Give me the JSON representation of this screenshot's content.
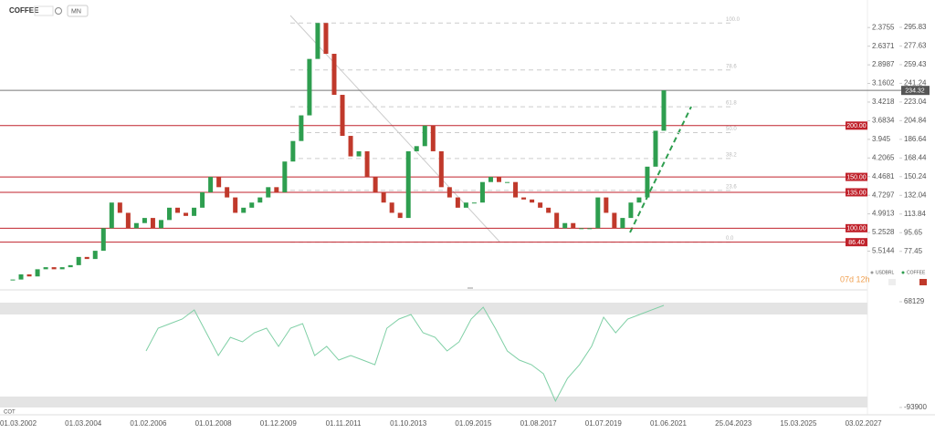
{
  "toolbar": {
    "symbol": "COFFEE",
    "timeframe": "MN"
  },
  "chart_data": [
    {
      "type": "candlestick",
      "x_labels": [
        "01.03.2002",
        "01.03.2004",
        "01.02.2006",
        "01.01.2008",
        "01.12.2009",
        "01.11.2011",
        "01.10.2013",
        "01.09.2015",
        "01.08.2017",
        "01.07.2019",
        "01.06.2021",
        "25.04.2023",
        "15.03.2025",
        "03.02.2027"
      ],
      "values": [
        50,
        55,
        53,
        60,
        62,
        60,
        62,
        64,
        72,
        70,
        78,
        100,
        125,
        115,
        100,
        105,
        110,
        100,
        108,
        120,
        115,
        112,
        120,
        135,
        150,
        140,
        130,
        115,
        120,
        125,
        130,
        140,
        135,
        165,
        185,
        210,
        265,
        300,
        270,
        230,
        190,
        170,
        175,
        150,
        135,
        125,
        115,
        110,
        175,
        180,
        200,
        175,
        140,
        130,
        120,
        125,
        125,
        145,
        150,
        145,
        145,
        130,
        128,
        125,
        120,
        115,
        100,
        105,
        100,
        100,
        100,
        130,
        115,
        100,
        110,
        125,
        130,
        160,
        195,
        234.32
      ],
      "up_color": "#2e9e4f",
      "down_color": "#c0392b",
      "ylim": [
        47,
        310
      ],
      "yticks": [
        295.83,
        277.63,
        259.43,
        241.24,
        223.04,
        204.84,
        186.64,
        168.44,
        150.24,
        132.04,
        113.84,
        95.65,
        77.45
      ],
      "y2lim": [
        5.956,
        2.168
      ],
      "y2ticks": [
        2.3755,
        2.6371,
        2.8987,
        3.1602,
        3.4218,
        3.6834,
        3.945,
        4.2065,
        4.4681,
        4.7297,
        4.9913,
        5.2528,
        5.5144
      ],
      "levels": [
        {
          "value": 200,
          "label": "200.00"
        },
        {
          "value": 150,
          "label": "150.00"
        },
        {
          "value": 135,
          "label": "135.00"
        },
        {
          "value": 100,
          "label": "100.00"
        },
        {
          "value": 86.4,
          "label": "86.40"
        }
      ],
      "level_color": "#c0222b",
      "last_price": 234.32,
      "fib_levels": [
        {
          "value": 100,
          "label": "100.0"
        },
        78.6,
        61.8,
        {
          "value": 50,
          "label": "50.0"
        },
        38.2,
        23.6,
        {
          "value": 0,
          "label": "0.0"
        }
      ],
      "countdown": "07d 12h",
      "legend": [
        "USDBRL",
        "COFFEE"
      ]
    },
    {
      "type": "line",
      "name": "COT",
      "color": "#7fcfa5",
      "values": [
        -7300,
        27600,
        34600,
        41600,
        55600,
        20600,
        -14300,
        13600,
        6700,
        20600,
        27600,
        -300,
        27600,
        34600,
        -14300,
        -300,
        -21300,
        -14300,
        -21300,
        -28300,
        27600,
        41600,
        48600,
        20600,
        13600,
        -7300,
        6700,
        41600,
        59700,
        27600,
        -7300,
        -21300,
        -28300,
        -42200,
        -84100,
        -49200,
        -28300,
        -300,
        44400,
        20600,
        41600,
        48600,
        55600,
        62500
      ],
      "ylim": [
        -93900,
        68129
      ],
      "yticks": [
        68129,
        -93900
      ]
    }
  ]
}
